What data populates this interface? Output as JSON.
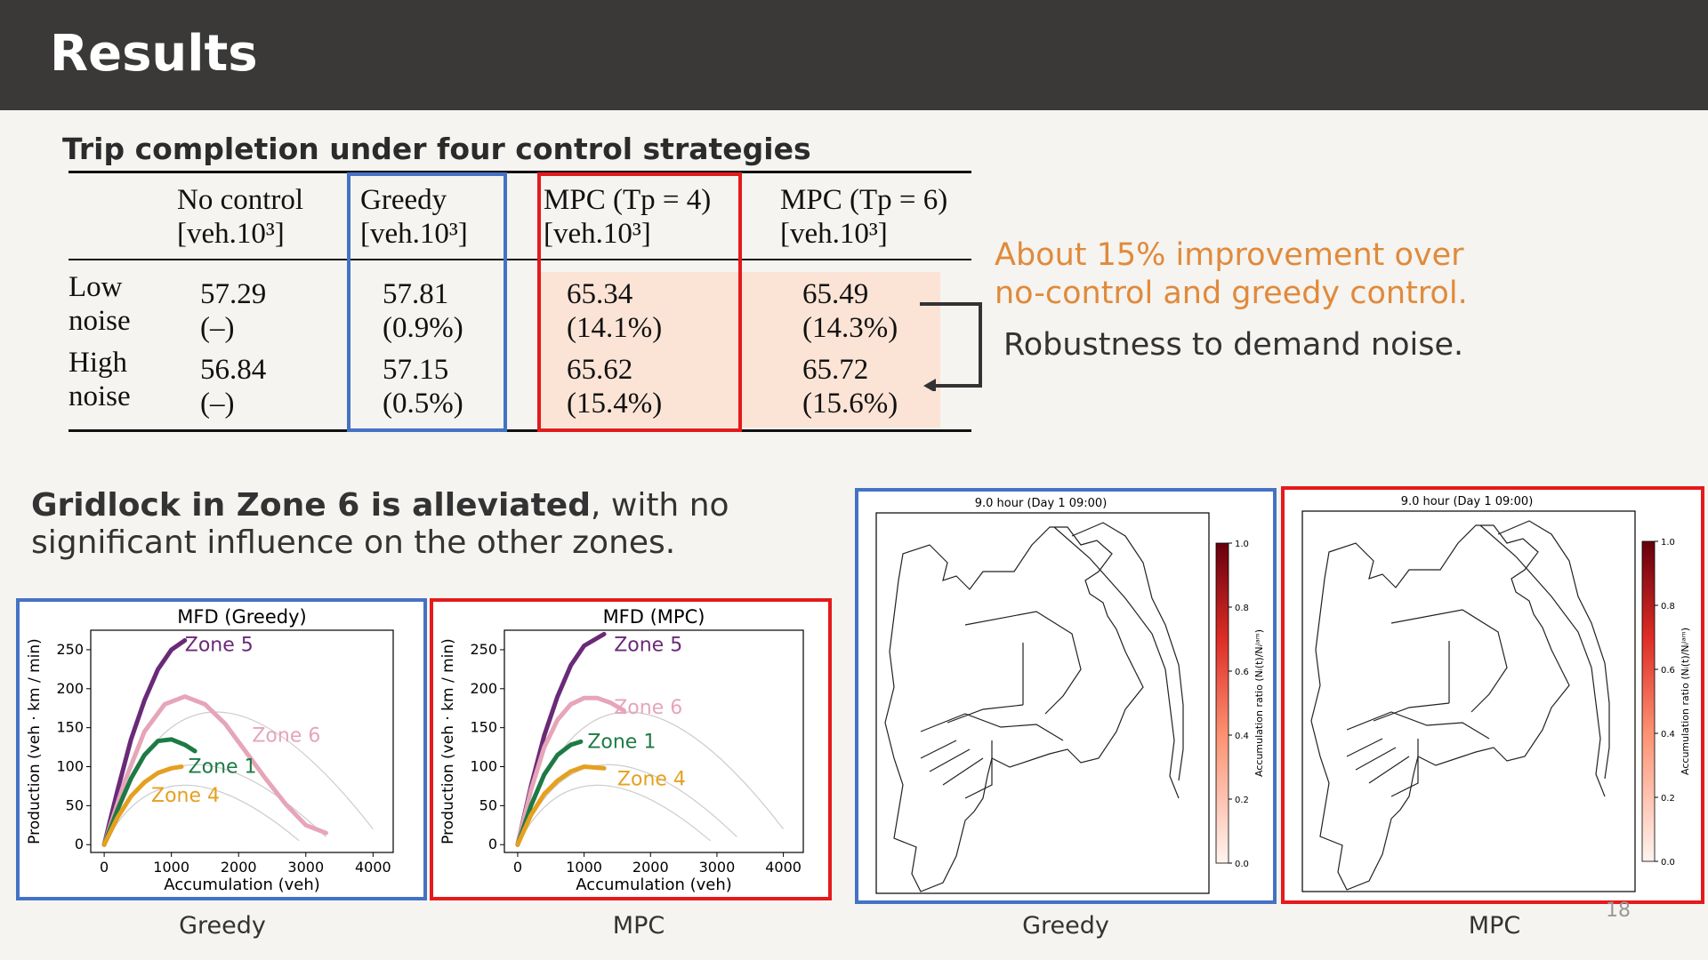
{
  "header": {
    "title": "Results"
  },
  "table_section": {
    "title": "Trip completion under four control strategies",
    "columns": [
      {
        "line1": "No  control",
        "line2": "[veh.10³]"
      },
      {
        "line1": "Greedy",
        "line2": "[veh.10³]"
      },
      {
        "line1": "MPC (Tp = 4)",
        "line2": "[veh.10³]"
      },
      {
        "line1": "MPC (Tp = 6)",
        "line2": "[veh.10³]"
      }
    ],
    "rows": [
      {
        "label1": "Low",
        "label2": "noise",
        "cells": [
          [
            "57.29",
            "(–)"
          ],
          [
            "57.81",
            "(0.9%)"
          ],
          [
            "65.34",
            "(14.1%)"
          ],
          [
            "65.49",
            "(14.3%)"
          ]
        ]
      },
      {
        "label1": "High",
        "label2": "noise",
        "cells": [
          [
            "56.84",
            "(–)"
          ],
          [
            "57.15",
            "(0.5%)"
          ],
          [
            "65.62",
            "(15.4%)"
          ],
          [
            "65.72",
            "(15.6%)"
          ]
        ]
      }
    ]
  },
  "notes": {
    "improvement_line1": "About 15% improvement over",
    "improvement_line2": "no-control and greedy control.",
    "robustness": "Robustness to demand noise."
  },
  "gridlock": {
    "bold": "Gridlock in Zone 6 is alleviated",
    "rest": ", with no significant influence on the other zones."
  },
  "chart_data": [
    {
      "type": "line",
      "title": "MFD (Greedy)",
      "xlabel": "Accumulation (veh)",
      "ylabel": "Production (veh · km / min)",
      "xlim": [
        -200,
        4300
      ],
      "ylim": [
        -10,
        275
      ],
      "xticks": [
        0,
        1000,
        2000,
        3000,
        4000
      ],
      "yticks": [
        0,
        50,
        100,
        150,
        200,
        250
      ],
      "series": [
        {
          "name": "Zone 5",
          "color": "#6a2a78",
          "x": [
            0,
            200,
            400,
            600,
            800,
            1000,
            1200
          ],
          "y": [
            0,
            70,
            135,
            185,
            225,
            250,
            262
          ]
        },
        {
          "name": "Zone 6",
          "color": "#e6a5b8",
          "x": [
            0,
            300,
            600,
            900,
            1200,
            1500,
            1800,
            2100,
            2400,
            2700,
            3000,
            3300
          ],
          "y": [
            0,
            80,
            145,
            180,
            190,
            180,
            155,
            120,
            85,
            52,
            25,
            15
          ]
        },
        {
          "name": "Zone 1",
          "color": "#1e7a45",
          "x": [
            0,
            200,
            400,
            600,
            800,
            1000,
            1200,
            1350
          ],
          "y": [
            0,
            45,
            85,
            115,
            133,
            135,
            128,
            120
          ]
        },
        {
          "name": "Zone 4",
          "color": "#e5a020",
          "x": [
            0,
            200,
            400,
            600,
            800,
            1000,
            1150
          ],
          "y": [
            0,
            35,
            62,
            80,
            92,
            98,
            100
          ]
        }
      ]
    },
    {
      "type": "line",
      "title": "MFD (MPC)",
      "xlabel": "Accumulation (veh)",
      "ylabel": "Production (veh · km / min)",
      "xlim": [
        -200,
        4300
      ],
      "ylim": [
        -10,
        275
      ],
      "xticks": [
        0,
        1000,
        2000,
        3000,
        4000
      ],
      "yticks": [
        0,
        50,
        100,
        150,
        200,
        250
      ],
      "series": [
        {
          "name": "Zone 5",
          "color": "#6a2a78",
          "x": [
            0,
            200,
            400,
            600,
            800,
            1000,
            1300
          ],
          "y": [
            0,
            75,
            140,
            190,
            230,
            255,
            270
          ]
        },
        {
          "name": "Zone 6",
          "color": "#e6a5b8",
          "x": [
            0,
            200,
            400,
            600,
            800,
            1000,
            1200,
            1400,
            1600
          ],
          "y": [
            0,
            70,
            125,
            160,
            180,
            188,
            188,
            182,
            172
          ]
        },
        {
          "name": "Zone 1",
          "color": "#1e7a45",
          "x": [
            0,
            200,
            400,
            600,
            800,
            950
          ],
          "y": [
            0,
            50,
            90,
            115,
            128,
            132
          ]
        },
        {
          "name": "Zone 4",
          "color": "#e5a020",
          "x": [
            0,
            200,
            400,
            600,
            800,
            1000,
            1300
          ],
          "y": [
            0,
            38,
            65,
            82,
            94,
            100,
            98
          ]
        }
      ]
    }
  ],
  "maps": [
    {
      "title": "9.0 hour (Day 1 09:00)",
      "colorbar_label": "Accumulation ratio (Nᵢ(t)/Nᵢʲᵃᵐ)",
      "colorbar_ticks": [
        "1.0",
        "0.8",
        "0.6",
        "0.4",
        "0.2",
        "0.0"
      ]
    },
    {
      "title": "9.0 hour (Day 1 09:00)",
      "colorbar_label": "Accumulation ratio (Nᵢ(t)/Nᵢʲᵃᵐ)",
      "colorbar_ticks": [
        "1.0",
        "0.8",
        "0.6",
        "0.4",
        "0.2",
        "0.0"
      ]
    }
  ],
  "captions": {
    "greedy1": "Greedy",
    "mpc1": "MPC",
    "greedy2": "Greedy",
    "mpc2": "MPC"
  },
  "page_number": "18",
  "colors": {
    "blue": "#4472c4",
    "red": "#e41a1c",
    "orange": "#e08a3c",
    "highlight": "#fbe4d6"
  }
}
